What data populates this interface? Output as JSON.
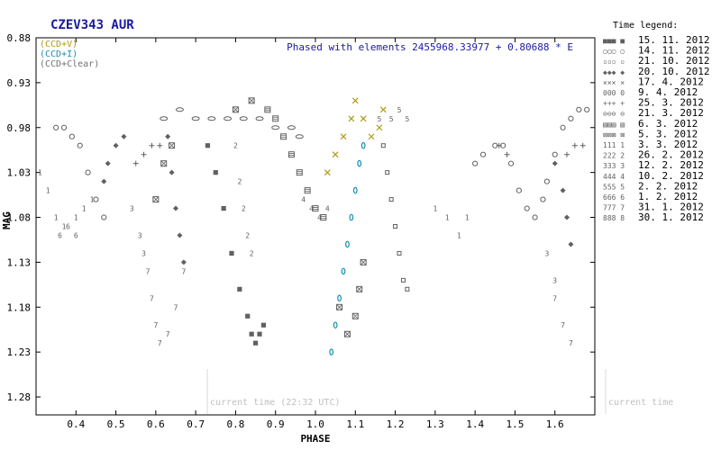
{
  "chart_data": {
    "type": "scatter",
    "title": "CZEV343 AUR",
    "annotation": "Phased with elements 2455968.33977 + 0.80688 * E",
    "xlabel": "PHASE",
    "ylabel": "MAG",
    "xlim": [
      0.3,
      1.7
    ],
    "ylim": [
      0.88,
      1.3
    ],
    "y_inverted": true,
    "x_ticks": [
      0.4,
      0.5,
      0.6,
      0.7,
      0.8,
      0.9,
      1.0,
      1.1,
      1.2,
      1.3,
      1.4,
      1.5,
      1.6
    ],
    "y_ticks": [
      0.88,
      0.93,
      0.98,
      1.03,
      1.08,
      1.13,
      1.18,
      1.23,
      1.28
    ],
    "filter_legend": [
      {
        "label": "(CCD+V)",
        "color": "#b09a10"
      },
      {
        "label": "(CCD+I)",
        "color": "#1a8fb0"
      },
      {
        "label": "(CCD+Clear)",
        "color": "#707070"
      }
    ],
    "current_time_label": "current time (22:32 UTC)",
    "current_time_label_right": "current time",
    "time_legend_title": "Time legend:",
    "time_legend": [
      {
        "symbol": "■■■ ■",
        "date": "15. 11. 2012"
      },
      {
        "symbol": "○○○ ○",
        "date": "14. 11. 2012"
      },
      {
        "symbol": "▫▫▫ ▫",
        "date": "21. 10. 2012"
      },
      {
        "symbol": "◆◆◆ ◆",
        "date": "20. 10. 2012"
      },
      {
        "symbol": "××× ×",
        "date": "17. 4. 2012"
      },
      {
        "symbol": "000 0",
        "date": "9. 4. 2012"
      },
      {
        "symbol": "+++ +",
        "date": "25. 3. 2012"
      },
      {
        "symbol": "⊖⊖⊖ ⊖",
        "date": "21. 3. 2012"
      },
      {
        "symbol": "▤▤▤ ▤",
        "date": "6. 3. 2012"
      },
      {
        "symbol": "⊠⊠⊠ ⊠",
        "date": "5. 3. 2012"
      },
      {
        "symbol": "111 1",
        "date": "3. 3. 2012"
      },
      {
        "symbol": "222 2",
        "date": "26. 2. 2012"
      },
      {
        "symbol": "333 3",
        "date": "12. 2. 2012"
      },
      {
        "symbol": "444 4",
        "date": "10. 2. 2012"
      },
      {
        "symbol": "555 5",
        "date": "2. 2. 2012"
      },
      {
        "symbol": "666 6",
        "date": "1. 2. 2012"
      },
      {
        "symbol": "777 7",
        "date": "31. 1. 2012"
      },
      {
        "symbol": "888 8",
        "date": "30. 1. 2012"
      }
    ],
    "series": [
      {
        "name": "15. 11. 2012",
        "marker": "square",
        "color": "#606060",
        "points": [
          [
            0.73,
            1.0
          ],
          [
            0.75,
            1.03
          ],
          [
            0.77,
            1.07
          ],
          [
            0.79,
            1.12
          ],
          [
            0.81,
            1.16
          ],
          [
            0.83,
            1.19
          ],
          [
            0.84,
            1.21
          ],
          [
            0.85,
            1.22
          ],
          [
            0.86,
            1.21
          ],
          [
            0.87,
            1.2
          ]
        ]
      },
      {
        "name": "14. 11. 2012",
        "marker": "circle",
        "color": "#606060",
        "points": [
          [
            0.35,
            0.98
          ],
          [
            0.37,
            0.98
          ],
          [
            0.39,
            0.99
          ],
          [
            0.41,
            1.0
          ],
          [
            0.43,
            1.03
          ],
          [
            0.45,
            1.06
          ],
          [
            0.47,
            1.08
          ],
          [
            1.4,
            1.02
          ],
          [
            1.42,
            1.01
          ],
          [
            1.45,
            1.0
          ],
          [
            1.47,
            1.0
          ],
          [
            1.49,
            1.02
          ],
          [
            1.51,
            1.05
          ],
          [
            1.53,
            1.07
          ],
          [
            1.55,
            1.08
          ],
          [
            1.57,
            1.06
          ],
          [
            1.58,
            1.04
          ],
          [
            1.6,
            1.01
          ],
          [
            1.62,
            0.98
          ],
          [
            1.64,
            0.97
          ],
          [
            1.66,
            0.96
          ],
          [
            1.68,
            0.96
          ]
        ]
      },
      {
        "name": "21. 10. 2012",
        "marker": "smallsquare",
        "color": "#606060",
        "points": [
          [
            1.17,
            1.0
          ],
          [
            1.18,
            1.03
          ],
          [
            1.19,
            1.06
          ],
          [
            1.2,
            1.09
          ],
          [
            1.21,
            1.12
          ],
          [
            1.22,
            1.15
          ],
          [
            1.23,
            1.16
          ]
        ]
      },
      {
        "name": "20. 10. 2012",
        "marker": "diamond",
        "color": "#606060",
        "points": [
          [
            0.47,
            1.04
          ],
          [
            0.48,
            1.02
          ],
          [
            0.5,
            1.0
          ],
          [
            0.52,
            0.99
          ],
          [
            0.63,
            0.99
          ],
          [
            0.64,
            1.03
          ],
          [
            0.65,
            1.07
          ],
          [
            0.66,
            1.1
          ],
          [
            0.67,
            1.13
          ],
          [
            1.6,
            1.02
          ],
          [
            1.62,
            1.05
          ],
          [
            1.63,
            1.08
          ],
          [
            1.64,
            1.11
          ]
        ]
      },
      {
        "name": "17. 4. 2012",
        "marker": "cross",
        "color": "#b09a10",
        "points": [
          [
            1.03,
            1.03
          ],
          [
            1.05,
            1.01
          ],
          [
            1.07,
            0.99
          ],
          [
            1.09,
            0.97
          ],
          [
            1.1,
            0.95
          ],
          [
            1.12,
            0.97
          ],
          [
            1.14,
            0.99
          ],
          [
            1.16,
            0.98
          ],
          [
            1.17,
            0.96
          ]
        ]
      },
      {
        "name": "9. 4. 2012",
        "marker": "zero",
        "color": "#1a8fb0",
        "points": [
          [
            1.04,
            1.23
          ],
          [
            1.05,
            1.2
          ],
          [
            1.06,
            1.17
          ],
          [
            1.07,
            1.14
          ],
          [
            1.08,
            1.11
          ],
          [
            1.09,
            1.08
          ],
          [
            1.1,
            1.05
          ],
          [
            1.11,
            1.02
          ],
          [
            1.12,
            1.0
          ]
        ]
      },
      {
        "name": "25. 3. 2012",
        "marker": "plus",
        "color": "#606060",
        "points": [
          [
            0.55,
            1.02
          ],
          [
            0.57,
            1.01
          ],
          [
            0.59,
            1.0
          ],
          [
            0.61,
            1.0
          ],
          [
            1.46,
            1.0
          ],
          [
            1.48,
            1.01
          ],
          [
            1.63,
            1.01
          ],
          [
            1.65,
            1.0
          ],
          [
            1.67,
            1.0
          ]
        ]
      },
      {
        "name": "21. 3. 2012",
        "marker": "ellipse",
        "color": "#606060",
        "points": [
          [
            0.62,
            0.97
          ],
          [
            0.66,
            0.96
          ],
          [
            0.7,
            0.97
          ],
          [
            0.74,
            0.97
          ],
          [
            0.78,
            0.97
          ],
          [
            0.82,
            0.97
          ],
          [
            0.86,
            0.97
          ],
          [
            0.9,
            0.98
          ],
          [
            0.94,
            0.98
          ],
          [
            0.96,
            0.99
          ]
        ]
      },
      {
        "name": "6. 3. 2012",
        "marker": "hatchsquare",
        "color": "#606060",
        "points": [
          [
            0.88,
            0.96
          ],
          [
            0.9,
            0.97
          ],
          [
            0.92,
            0.99
          ],
          [
            0.94,
            1.01
          ],
          [
            0.96,
            1.03
          ],
          [
            0.98,
            1.05
          ],
          [
            1.0,
            1.07
          ],
          [
            1.02,
            1.08
          ]
        ]
      },
      {
        "name": "5. 3. 2012",
        "marker": "xsquare",
        "color": "#606060",
        "points": [
          [
            0.6,
            1.06
          ],
          [
            0.62,
            1.02
          ],
          [
            0.64,
            1.0
          ],
          [
            0.8,
            0.96
          ],
          [
            0.84,
            0.95
          ],
          [
            1.06,
            1.18
          ],
          [
            1.08,
            1.21
          ],
          [
            1.1,
            1.19
          ],
          [
            1.11,
            1.16
          ],
          [
            1.12,
            1.13
          ]
        ]
      },
      {
        "name": "3. 3. 2012",
        "marker": "1",
        "color": "#606060",
        "points": [
          [
            0.31,
            1.03
          ],
          [
            0.33,
            1.05
          ],
          [
            0.35,
            1.08
          ],
          [
            0.37,
            1.09
          ],
          [
            0.4,
            1.08
          ],
          [
            0.42,
            1.07
          ],
          [
            0.44,
            1.06
          ],
          [
            1.3,
            1.07
          ],
          [
            1.33,
            1.08
          ],
          [
            1.36,
            1.1
          ],
          [
            1.38,
            1.08
          ]
        ]
      },
      {
        "name": "26. 2. 2012",
        "marker": "2",
        "color": "#606060",
        "points": [
          [
            0.8,
            1.0
          ],
          [
            0.81,
            1.04
          ],
          [
            0.82,
            1.07
          ],
          [
            0.83,
            1.1
          ],
          [
            0.84,
            1.12
          ]
        ]
      },
      {
        "name": "12. 2. 2012",
        "marker": "3",
        "color": "#606060",
        "points": [
          [
            0.54,
            1.07
          ],
          [
            0.56,
            1.1
          ],
          [
            0.57,
            1.12
          ],
          [
            1.58,
            1.12
          ],
          [
            1.6,
            1.15
          ]
        ]
      },
      {
        "name": "10. 2. 2012",
        "marker": "4",
        "color": "#606060",
        "points": [
          [
            0.97,
            1.06
          ],
          [
            0.99,
            1.07
          ],
          [
            1.01,
            1.08
          ],
          [
            1.03,
            1.07
          ]
        ]
      },
      {
        "name": "2. 2. 2012",
        "marker": "5",
        "color": "#606060",
        "points": [
          [
            1.16,
            0.97
          ],
          [
            1.19,
            0.97
          ],
          [
            1.21,
            0.96
          ],
          [
            1.23,
            0.97
          ]
        ]
      },
      {
        "name": "1. 2. 2012",
        "marker": "6",
        "color": "#606060",
        "points": [
          [
            0.36,
            1.1
          ],
          [
            0.38,
            1.09
          ],
          [
            0.4,
            1.1
          ]
        ]
      },
      {
        "name": "31. 1. 2012",
        "marker": "7",
        "color": "#606060",
        "points": [
          [
            0.58,
            1.14
          ],
          [
            0.59,
            1.17
          ],
          [
            0.6,
            1.2
          ],
          [
            0.61,
            1.22
          ],
          [
            0.63,
            1.21
          ],
          [
            0.65,
            1.18
          ],
          [
            0.67,
            1.14
          ],
          [
            1.6,
            1.17
          ],
          [
            1.62,
            1.2
          ],
          [
            1.64,
            1.22
          ]
        ]
      },
      {
        "name": "30. 1. 2012",
        "marker": "8",
        "color": "#606060",
        "points": []
      }
    ]
  }
}
